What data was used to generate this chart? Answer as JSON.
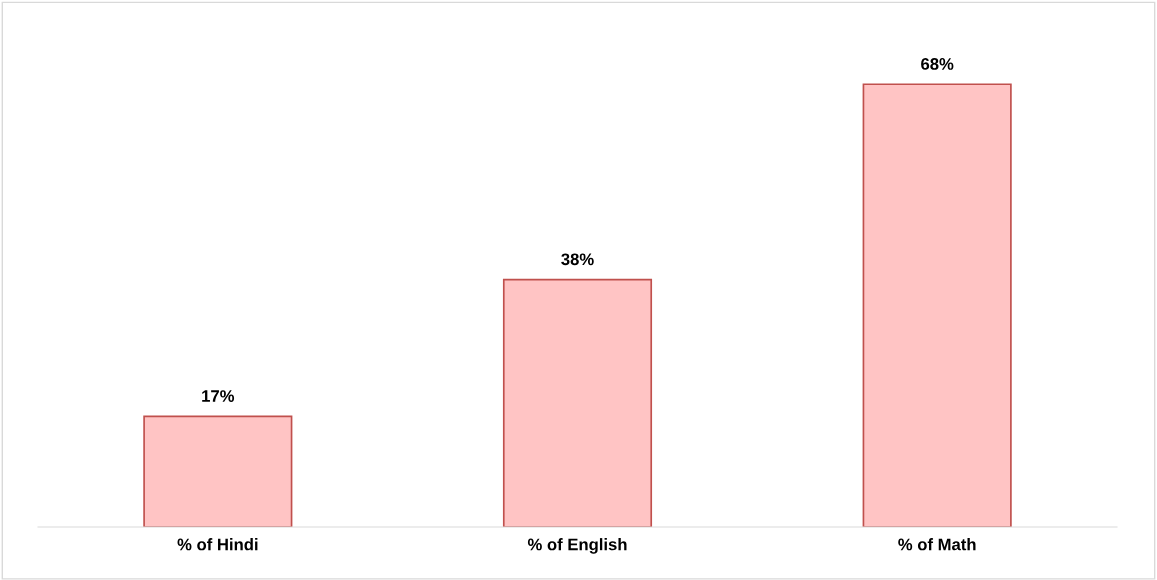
{
  "chart_data": {
    "type": "bar",
    "categories": [
      "% of Hindi",
      "% of English",
      "% of Math"
    ],
    "values": [
      17,
      38,
      68
    ],
    "value_labels": [
      "17%",
      "38%",
      "68%"
    ],
    "color": "#ffc4c4"
  }
}
